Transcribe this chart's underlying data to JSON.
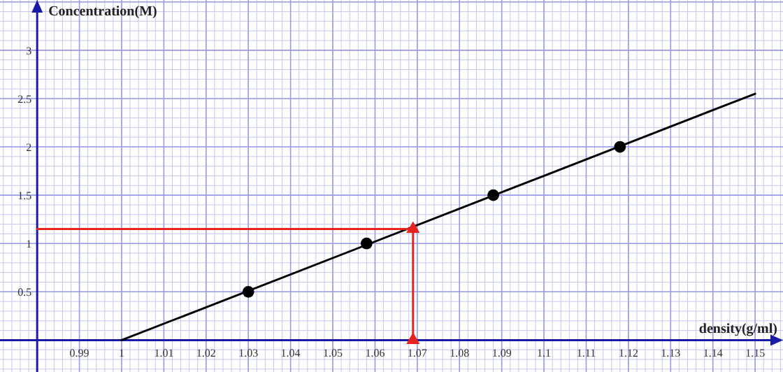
{
  "chart_data": {
    "type": "scatter",
    "xlabel": "density(g/ml)",
    "ylabel": "Concentration(M)",
    "xlim": [
      0.9712,
      1.1566
    ],
    "ylim": [
      -0.33,
      3.52
    ],
    "xticks": [
      0.99,
      1,
      1.01,
      1.02,
      1.03,
      1.04,
      1.05,
      1.06,
      1.07,
      1.08,
      1.09,
      1.1,
      1.11,
      1.12,
      1.13,
      1.14,
      1.15
    ],
    "yticks": [
      0.5,
      1,
      1.5,
      2,
      2.5,
      3
    ],
    "grid": true,
    "series": [
      {
        "type": "line",
        "color": "#000000",
        "x": [
          1,
          1.15
        ],
        "values": [
          0,
          2.55
        ]
      },
      {
        "color": "#000000",
        "x": [
          1.03,
          1.058,
          1.088,
          1.118
        ],
        "values": [
          0.5,
          1,
          1.5,
          2
        ],
        "marker": "circle"
      },
      {
        "type": "line",
        "color": "#e8221c",
        "x": [
          0.98,
          1.069,
          1.069
        ],
        "values": [
          1.15,
          1.15,
          0
        ]
      },
      {
        "color": "#e8221c",
        "x": [
          1.069,
          1.069
        ],
        "values": [
          1.15,
          0
        ],
        "marker": "triangle"
      }
    ]
  }
}
